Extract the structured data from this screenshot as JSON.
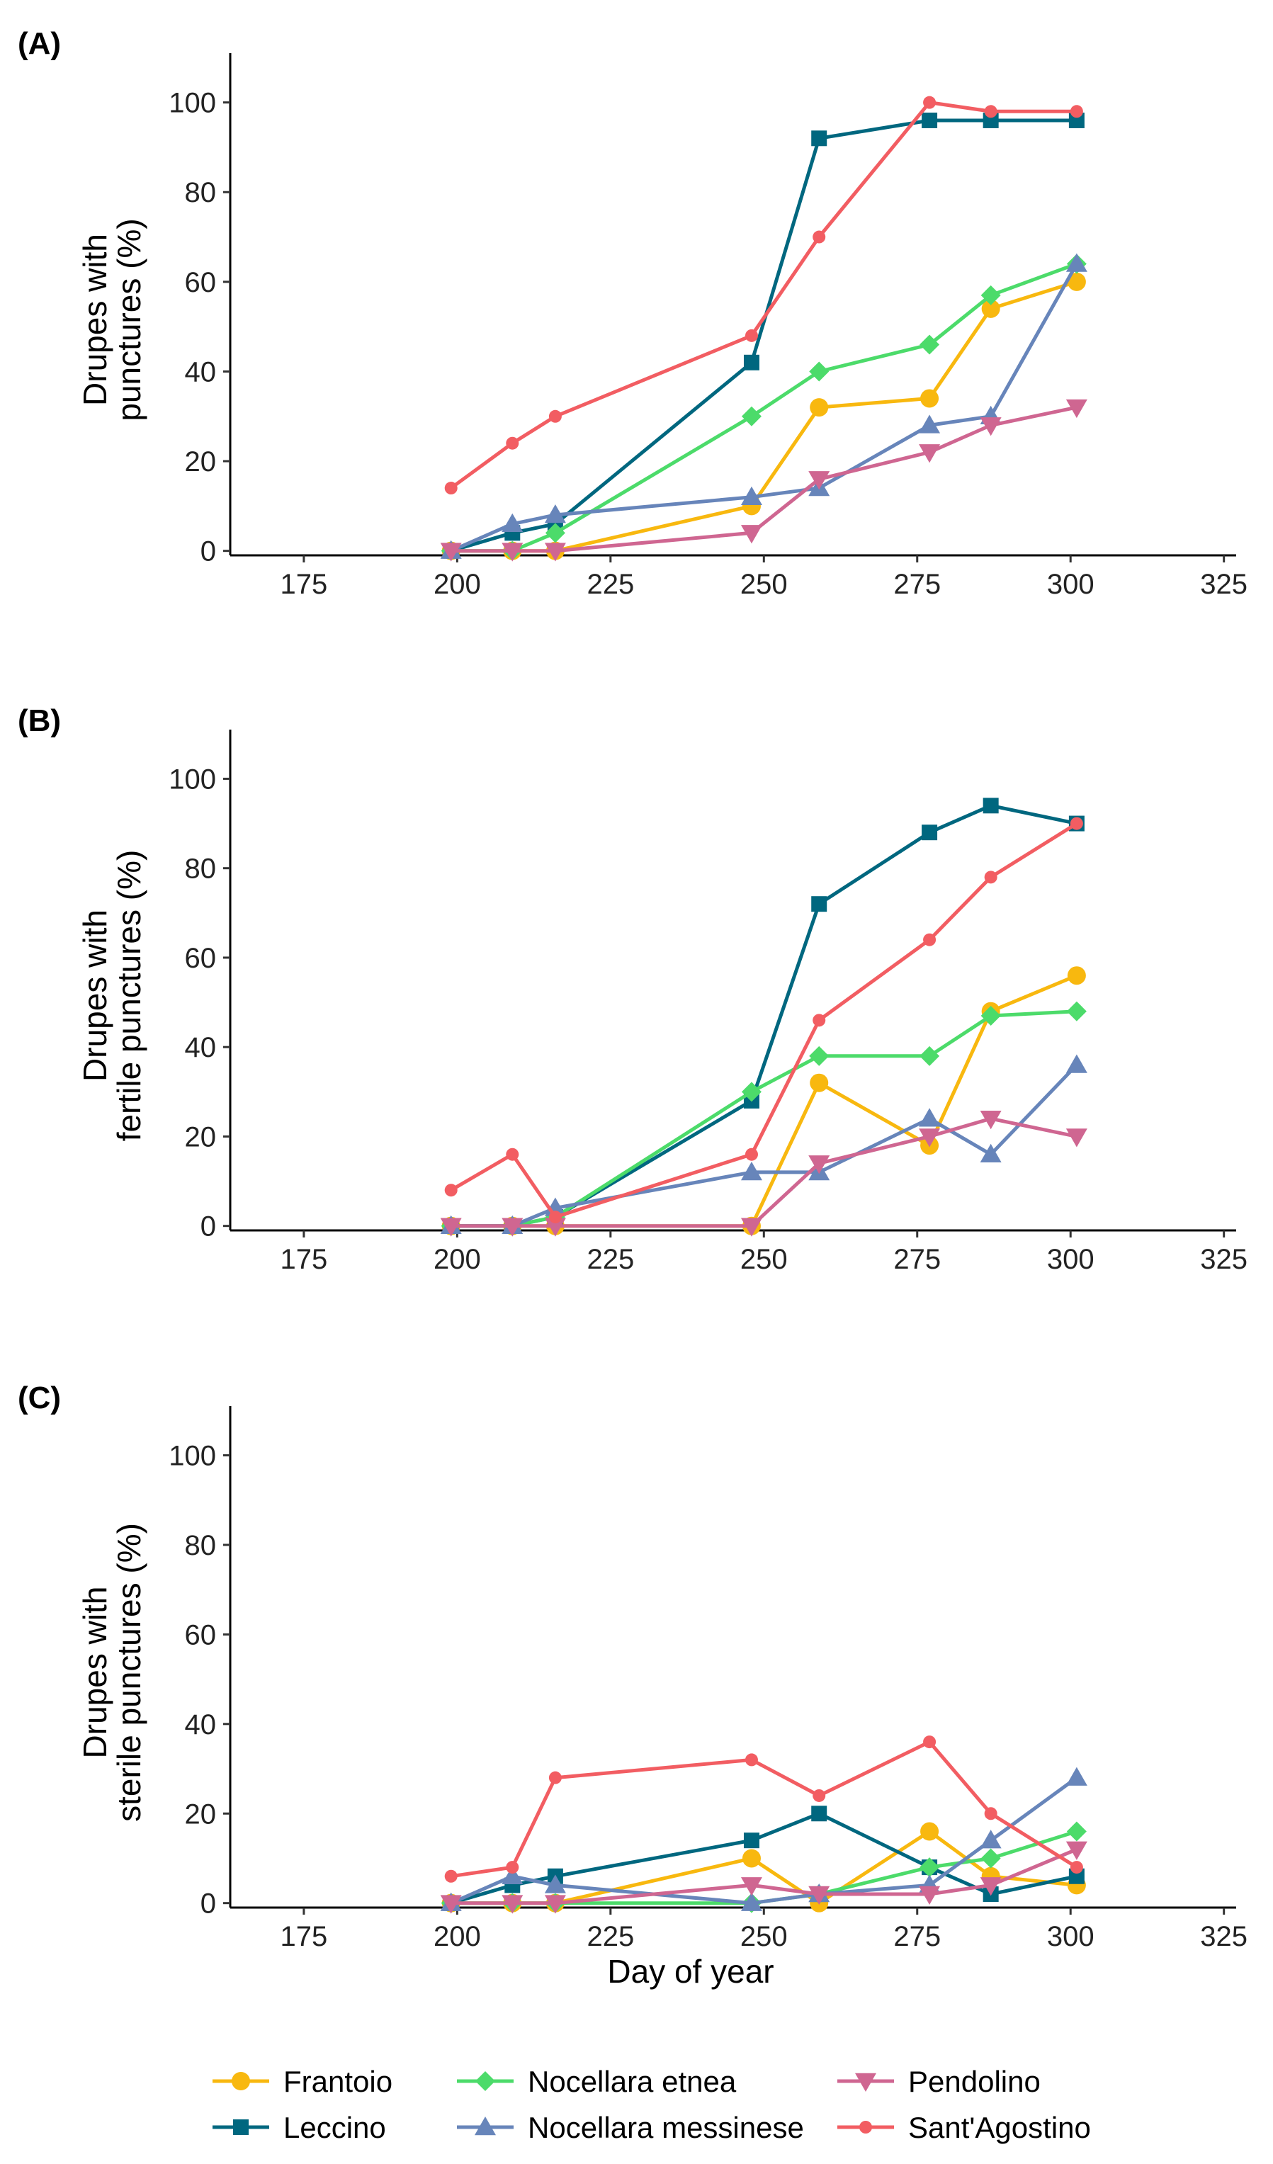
{
  "chart_data": [
    {
      "type": "line",
      "panel_label": "(A)",
      "ylabel_lines": [
        "Drupes with",
        "punctures (%)"
      ],
      "xlabel": "",
      "xlim": [
        163,
        327
      ],
      "ylim": [
        -1,
        111
      ],
      "xticks": [
        175,
        200,
        225,
        250,
        275,
        300,
        325
      ],
      "xtick_labels": [
        "175",
        "200",
        "225",
        "250",
        "275",
        "300",
        "325"
      ],
      "yticks": [
        0,
        20,
        40,
        60,
        80,
        100
      ],
      "ytick_labels": [
        "0",
        "20",
        "40",
        "60",
        "80",
        "100"
      ],
      "x": [
        199,
        209,
        216,
        248,
        259,
        277,
        287,
        301
      ],
      "series": [
        {
          "name": "Frantoio",
          "values": [
            0,
            0,
            0,
            10,
            32,
            34,
            54,
            60
          ]
        },
        {
          "name": "Leccino",
          "values": [
            0,
            4,
            6,
            42,
            92,
            96,
            96,
            96
          ]
        },
        {
          "name": "Nocellara etnea",
          "values": [
            0,
            0,
            4,
            30,
            40,
            46,
            57,
            64
          ]
        },
        {
          "name": "Nocellara messinese",
          "values": [
            0,
            6,
            8,
            12,
            14,
            28,
            30,
            64
          ]
        },
        {
          "name": "Pendolino",
          "values": [
            0,
            0,
            0,
            4,
            16,
            22,
            28,
            32
          ]
        },
        {
          "name": "Sant'Agostino",
          "values": [
            14,
            24,
            30,
            48,
            70,
            100,
            98,
            98
          ]
        }
      ]
    },
    {
      "type": "line",
      "panel_label": "(B)",
      "ylabel_lines": [
        "Drupes with",
        "fertile punctures (%)"
      ],
      "xlabel": "",
      "xlim": [
        163,
        327
      ],
      "ylim": [
        -1,
        111
      ],
      "xticks": [
        175,
        200,
        225,
        250,
        275,
        300,
        325
      ],
      "xtick_labels": [
        "175",
        "200",
        "225",
        "250",
        "275",
        "300",
        "325"
      ],
      "yticks": [
        0,
        20,
        40,
        60,
        80,
        100
      ],
      "ytick_labels": [
        "0",
        "20",
        "40",
        "60",
        "80",
        "100"
      ],
      "x": [
        199,
        209,
        216,
        248,
        259,
        277,
        287,
        301
      ],
      "series": [
        {
          "name": "Frantoio",
          "values": [
            0,
            0,
            0,
            0,
            32,
            18,
            48,
            56
          ]
        },
        {
          "name": "Leccino",
          "values": [
            0,
            0,
            2,
            28,
            72,
            88,
            94,
            90
          ]
        },
        {
          "name": "Nocellara etnea",
          "values": [
            0,
            0,
            2,
            30,
            38,
            38,
            47,
            48
          ]
        },
        {
          "name": "Nocellara messinese",
          "values": [
            0,
            0,
            4,
            12,
            12,
            24,
            16,
            36
          ]
        },
        {
          "name": "Pendolino",
          "values": [
            0,
            0,
            0,
            0,
            14,
            20,
            24,
            20
          ]
        },
        {
          "name": "Sant'Agostino",
          "values": [
            8,
            16,
            2,
            16,
            46,
            64,
            78,
            90
          ]
        }
      ]
    },
    {
      "type": "line",
      "panel_label": "(C)",
      "ylabel_lines": [
        "Drupes with",
        "sterile punctures (%)"
      ],
      "xlabel": "Day of year",
      "xlim": [
        163,
        327
      ],
      "ylim": [
        -1,
        111
      ],
      "xticks": [
        175,
        200,
        225,
        250,
        275,
        300,
        325
      ],
      "xtick_labels": [
        "175",
        "200",
        "225",
        "250",
        "275",
        "300",
        "325"
      ],
      "yticks": [
        0,
        20,
        40,
        60,
        80,
        100
      ],
      "ytick_labels": [
        "0",
        "20",
        "40",
        "60",
        "80",
        "100"
      ],
      "x": [
        199,
        209,
        216,
        248,
        259,
        277,
        287,
        301
      ],
      "series": [
        {
          "name": "Frantoio",
          "values": [
            0,
            0,
            0,
            10,
            0,
            16,
            6,
            4
          ]
        },
        {
          "name": "Leccino",
          "values": [
            0,
            4,
            6,
            14,
            20,
            8,
            2,
            6
          ]
        },
        {
          "name": "Nocellara etnea",
          "values": [
            0,
            0,
            0,
            0,
            2,
            8,
            10,
            16
          ]
        },
        {
          "name": "Nocellara messinese",
          "values": [
            0,
            6,
            4,
            0,
            2,
            4,
            14,
            28
          ]
        },
        {
          "name": "Pendolino",
          "values": [
            0,
            0,
            0,
            4,
            2,
            2,
            4,
            12
          ]
        },
        {
          "name": "Sant'Agostino",
          "values": [
            6,
            8,
            28,
            32,
            24,
            36,
            20,
            8
          ]
        }
      ]
    }
  ],
  "legend": {
    "position": "bottom",
    "items": [
      {
        "name": "Frantoio",
        "color": "#F8B80F",
        "marker": "circle"
      },
      {
        "name": "Leccino",
        "color": "#00677F",
        "marker": "square"
      },
      {
        "name": "Nocellara etnea",
        "color": "#4CDB6A",
        "marker": "diamond"
      },
      {
        "name": "Nocellara messinese",
        "color": "#6785BA",
        "marker": "triangle-up"
      },
      {
        "name": "Pendolino",
        "color": "#CF6691",
        "marker": "triangle-down"
      },
      {
        "name": "Sant'Agostino",
        "color": "#F25D62",
        "marker": "small-circle"
      }
    ]
  }
}
